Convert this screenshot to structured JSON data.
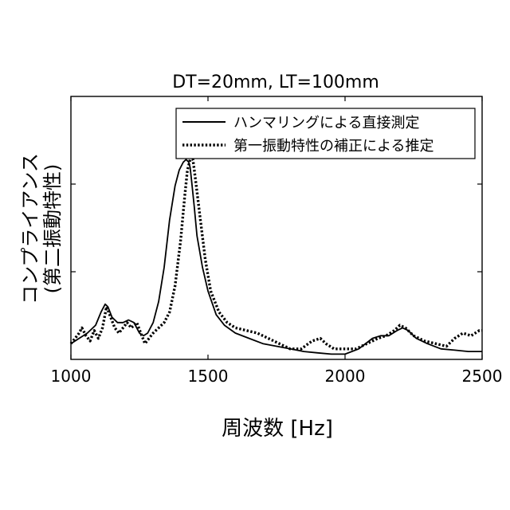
{
  "chart_data": {
    "type": "line",
    "title": "DT=20mm, LT=100mm",
    "xlabel": "周波数 [Hz]",
    "ylabel_line1": "コンプライアンス",
    "ylabel_line2": "(第二振動特性)",
    "xlim": [
      1000,
      2500
    ],
    "ylim": [
      0,
      1
    ],
    "xticks": [
      1000,
      1500,
      2000,
      2500
    ],
    "grid": false,
    "legend_position": "top-right",
    "series": [
      {
        "name": "ハンマリングによる直接測定",
        "style": "solid",
        "color": "#000000",
        "x": [
          1000,
          1030,
          1060,
          1090,
          1110,
          1125,
          1135,
          1150,
          1170,
          1190,
          1210,
          1230,
          1250,
          1265,
          1280,
          1300,
          1320,
          1340,
          1360,
          1380,
          1395,
          1410,
          1420,
          1430,
          1435,
          1440,
          1450,
          1460,
          1480,
          1500,
          1530,
          1560,
          1600,
          1650,
          1700,
          1750,
          1800,
          1850,
          1900,
          1950,
          2000,
          2050,
          2100,
          2130,
          2160,
          2190,
          2210,
          2230,
          2260,
          2300,
          2350,
          2400,
          2450,
          2500
        ],
        "y": [
          0.06,
          0.08,
          0.1,
          0.13,
          0.18,
          0.21,
          0.2,
          0.16,
          0.14,
          0.14,
          0.15,
          0.14,
          0.1,
          0.09,
          0.1,
          0.14,
          0.22,
          0.35,
          0.53,
          0.66,
          0.72,
          0.75,
          0.76,
          0.75,
          0.73,
          0.68,
          0.58,
          0.47,
          0.35,
          0.26,
          0.17,
          0.13,
          0.1,
          0.08,
          0.06,
          0.05,
          0.04,
          0.03,
          0.025,
          0.02,
          0.02,
          0.04,
          0.08,
          0.09,
          0.09,
          0.11,
          0.12,
          0.11,
          0.08,
          0.06,
          0.04,
          0.035,
          0.03,
          0.03
        ]
      },
      {
        "name": "第一振動特性の補正による推定",
        "style": "dotted",
        "color": "#000000",
        "x": [
          1000,
          1015,
          1030,
          1040,
          1055,
          1070,
          1085,
          1100,
          1115,
          1130,
          1145,
          1160,
          1175,
          1190,
          1205,
          1220,
          1240,
          1255,
          1270,
          1285,
          1300,
          1320,
          1340,
          1360,
          1380,
          1400,
          1415,
          1425,
          1435,
          1445,
          1455,
          1470,
          1490,
          1510,
          1540,
          1570,
          1600,
          1640,
          1680,
          1720,
          1760,
          1800,
          1840,
          1880,
          1910,
          1930,
          1960,
          2000,
          2040,
          2080,
          2120,
          2150,
          2180,
          2200,
          2220,
          2250,
          2290,
          2330,
          2370,
          2400,
          2430,
          2460,
          2490,
          2500
        ],
        "y": [
          0.06,
          0.08,
          0.1,
          0.12,
          0.09,
          0.07,
          0.11,
          0.08,
          0.12,
          0.2,
          0.16,
          0.12,
          0.1,
          0.12,
          0.14,
          0.12,
          0.14,
          0.1,
          0.06,
          0.08,
          0.1,
          0.12,
          0.14,
          0.18,
          0.28,
          0.45,
          0.62,
          0.72,
          0.76,
          0.76,
          0.68,
          0.55,
          0.38,
          0.26,
          0.18,
          0.14,
          0.12,
          0.11,
          0.1,
          0.08,
          0.06,
          0.04,
          0.04,
          0.07,
          0.08,
          0.06,
          0.04,
          0.04,
          0.04,
          0.06,
          0.08,
          0.09,
          0.11,
          0.13,
          0.12,
          0.09,
          0.07,
          0.06,
          0.05,
          0.08,
          0.1,
          0.09,
          0.11,
          0.11
        ]
      }
    ]
  }
}
